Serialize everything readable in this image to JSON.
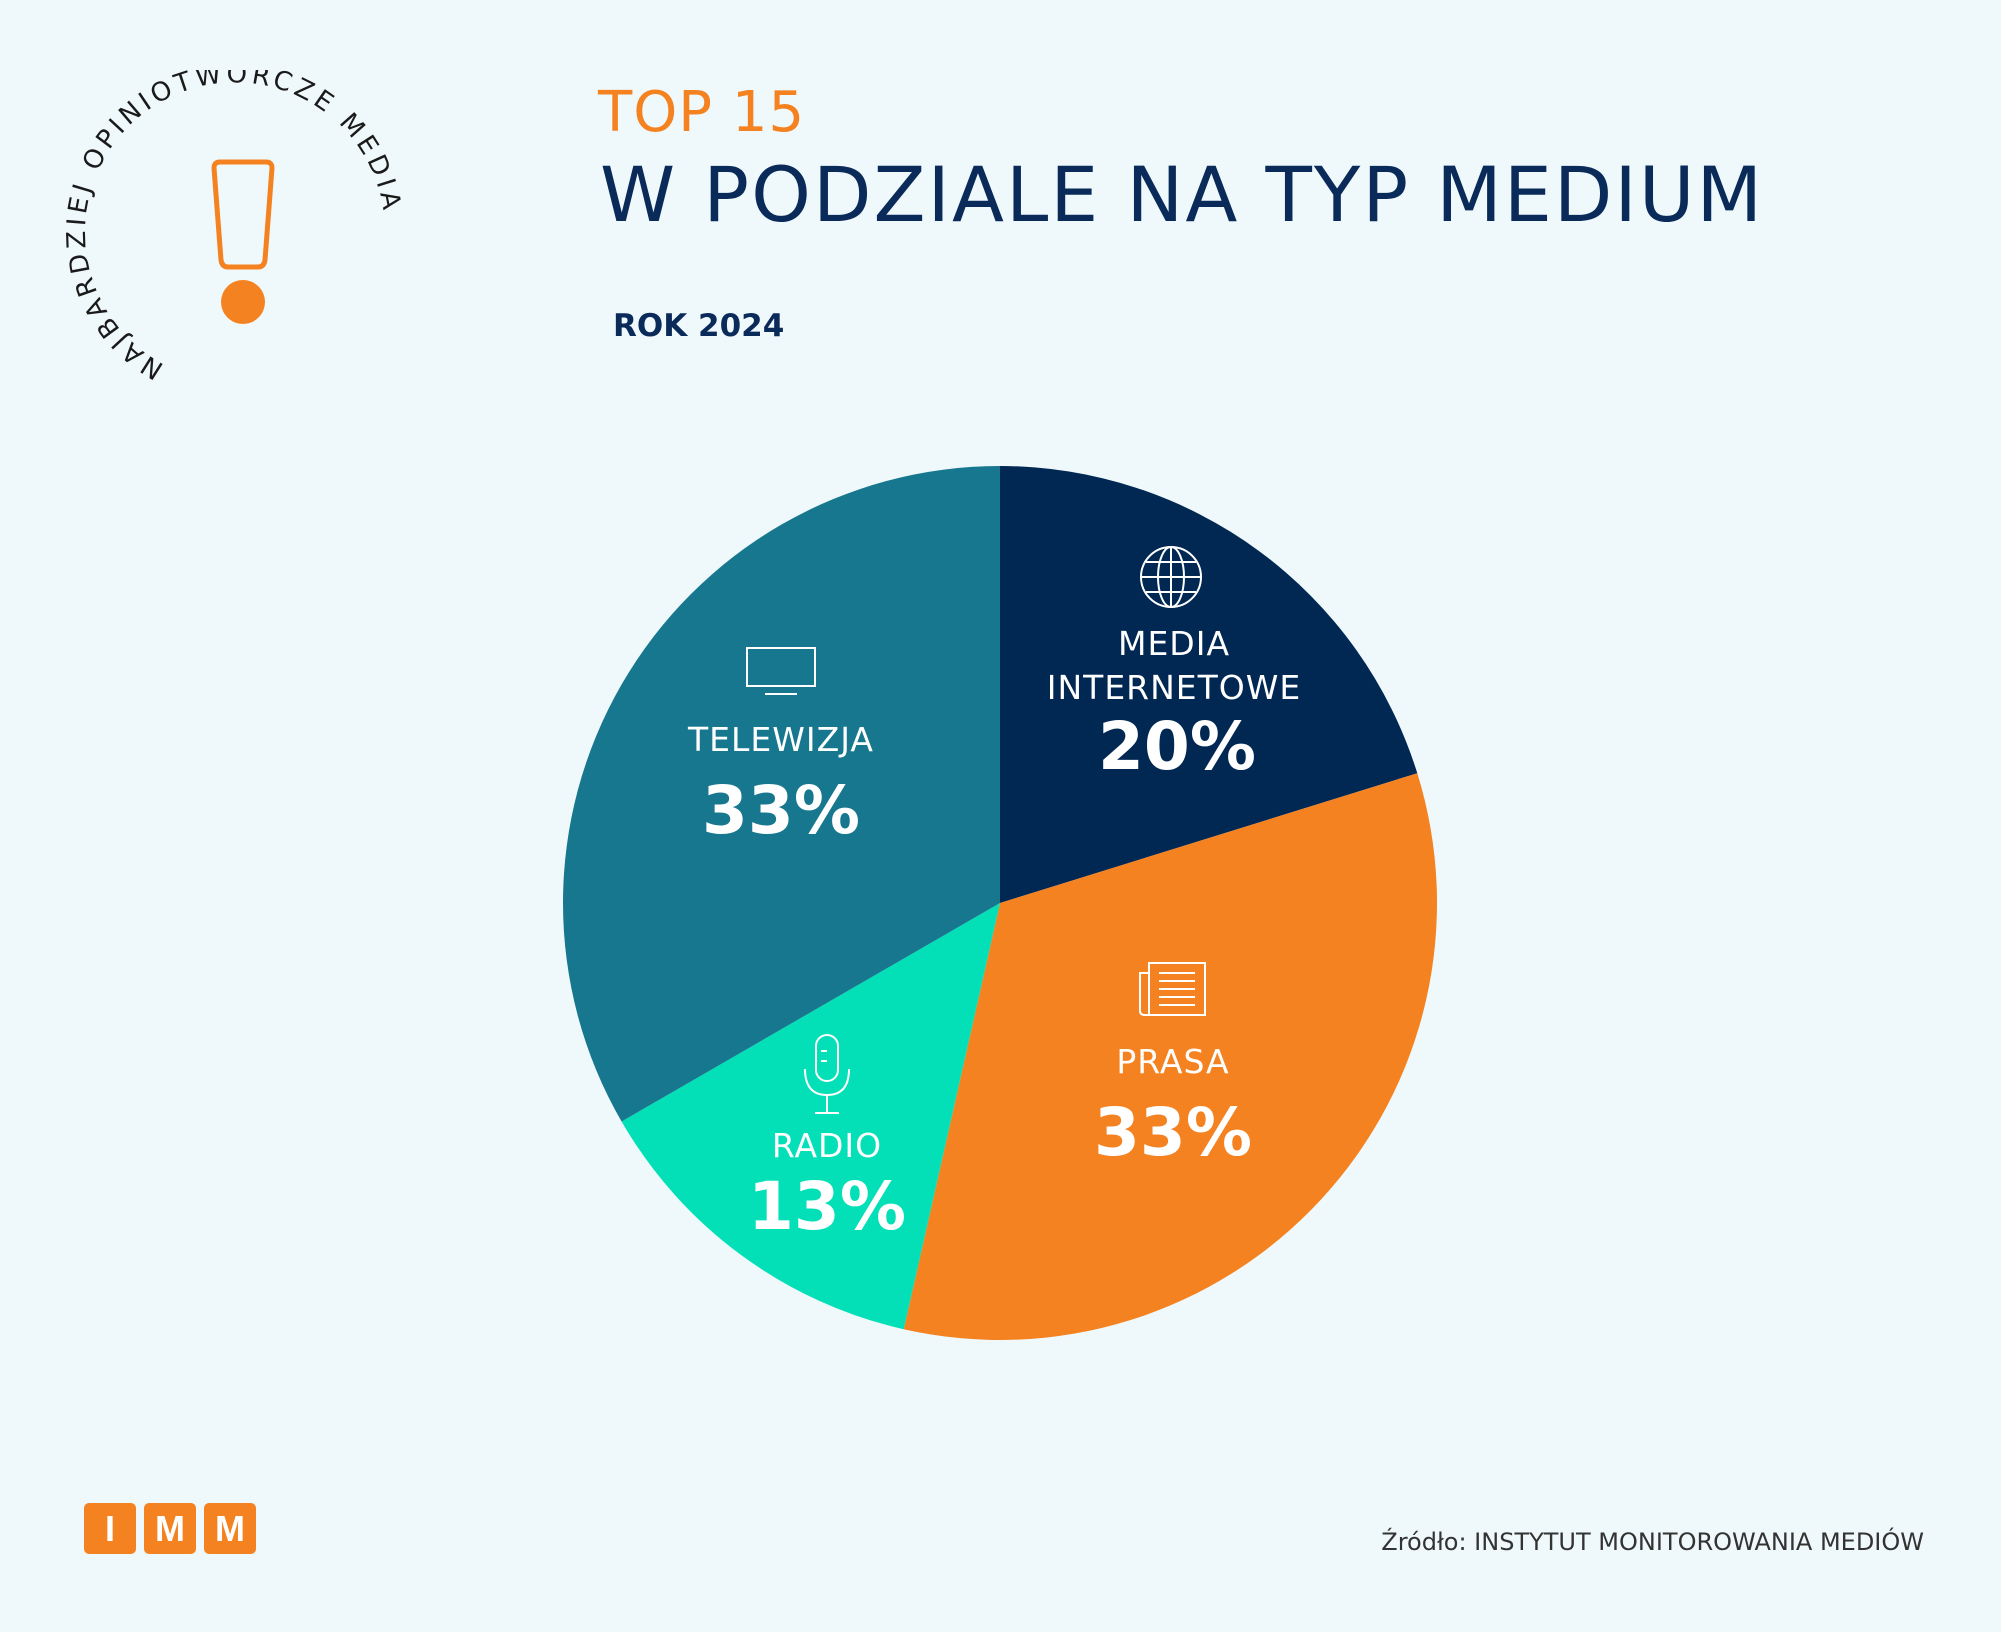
{
  "header": {
    "top_label": "TOP 15",
    "title": "W PODZIALE NA TYP MEDIUM",
    "subtitle": "ROK 2024"
  },
  "badge": {
    "text": "NAJBARDZIEJ OPINIOTWÓRCZE MEDIA",
    "icon": "exclamation-icon"
  },
  "chart_data": {
    "type": "pie",
    "title": "W PODZIALE NA TYP MEDIUM",
    "categories": [
      "MEDIA INTERNETOWE",
      "PRASA",
      "RADIO",
      "TELEWIZJA"
    ],
    "values": [
      20,
      33,
      13,
      33
    ],
    "labels": [
      "20%",
      "33%",
      "13%",
      "33%"
    ],
    "colors": [
      "#012753",
      "#F58220",
      "#03DFB6",
      "#16778E"
    ],
    "icons": [
      "globe-icon",
      "newspaper-icon",
      "microphone-icon",
      "tv-icon"
    ],
    "start_angle": "top",
    "direction": "clockwise"
  },
  "labels": {
    "internet": {
      "line1": "MEDIA",
      "line2": "INTERNETOWE",
      "pct": "20%"
    },
    "prasa": {
      "name": "PRASA",
      "pct": "33%"
    },
    "radio": {
      "name": "RADIO",
      "pct": "13%"
    },
    "tv": {
      "name": "TELEWIZJA",
      "pct": "33%"
    }
  },
  "footer": {
    "logo_letters": [
      "I",
      "M",
      "M"
    ],
    "source": "Źródło: INSTYTUT MONITOROWANIA MEDIÓW"
  },
  "colors": {
    "accent": "#F58220",
    "navy": "#0A2A5A",
    "background": "#EFF9FB"
  }
}
